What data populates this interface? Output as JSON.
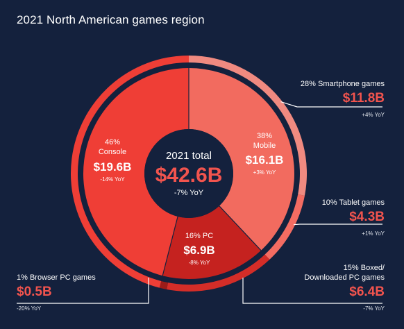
{
  "title": "2021 North American games region",
  "colors": {
    "background": "#14213d",
    "console": "#ef3e36",
    "mobile": "#f26b5f",
    "pc": "#c5221f",
    "pc_outer": "#d0302b",
    "smartphone": "#f08a80",
    "tablet": "#f46c62",
    "boxed_pc": "#d42d28",
    "browser_pc": "#9c1c19",
    "accent_text": "#f2544e",
    "leader": "#ffffff"
  },
  "chart_data": {
    "type": "pie",
    "subtype": "sunburst-donut",
    "center": {
      "label": "2021 total",
      "value": "$42.6B",
      "yoy": "-7% YoY"
    },
    "inner": [
      {
        "name": "Console",
        "percent": 46,
        "percent_label": "46%",
        "value": 19.6,
        "value_label": "$19.6B",
        "yoy": "-14% YoY"
      },
      {
        "name": "Mobile",
        "percent": 38,
        "percent_label": "38%",
        "value": 16.1,
        "value_label": "$16.1B",
        "yoy": "+3% YoY"
      },
      {
        "name": "PC",
        "percent": 16,
        "percent_label": "16% PC",
        "value": 6.9,
        "value_label": "$6.9B",
        "yoy": "-8% YoY"
      }
    ],
    "outer": [
      {
        "name": "Console",
        "parent": "Console",
        "percent": 46
      },
      {
        "name": "Smartphone games",
        "parent": "Mobile",
        "percent": 28,
        "label": "28% Smartphone games",
        "value": 11.8,
        "value_label": "$11.8B",
        "yoy": "+4% YoY"
      },
      {
        "name": "Tablet games",
        "parent": "Mobile",
        "percent": 10,
        "label": "10% Tablet games",
        "value": 4.3,
        "value_label": "$4.3B",
        "yoy": "+1% YoY"
      },
      {
        "name": "Boxed/Downloaded PC games",
        "parent": "PC",
        "percent": 15,
        "label_line1": "15% Boxed/",
        "label_line2": "Downloaded PC games",
        "value": 6.4,
        "value_label": "$6.4B",
        "yoy": "-7% YoY"
      },
      {
        "name": "Browser PC games",
        "parent": "PC",
        "percent": 1,
        "label": "1% Browser PC games",
        "value": 0.5,
        "value_label": "$0.5B",
        "yoy": "-20% YoY"
      }
    ]
  }
}
